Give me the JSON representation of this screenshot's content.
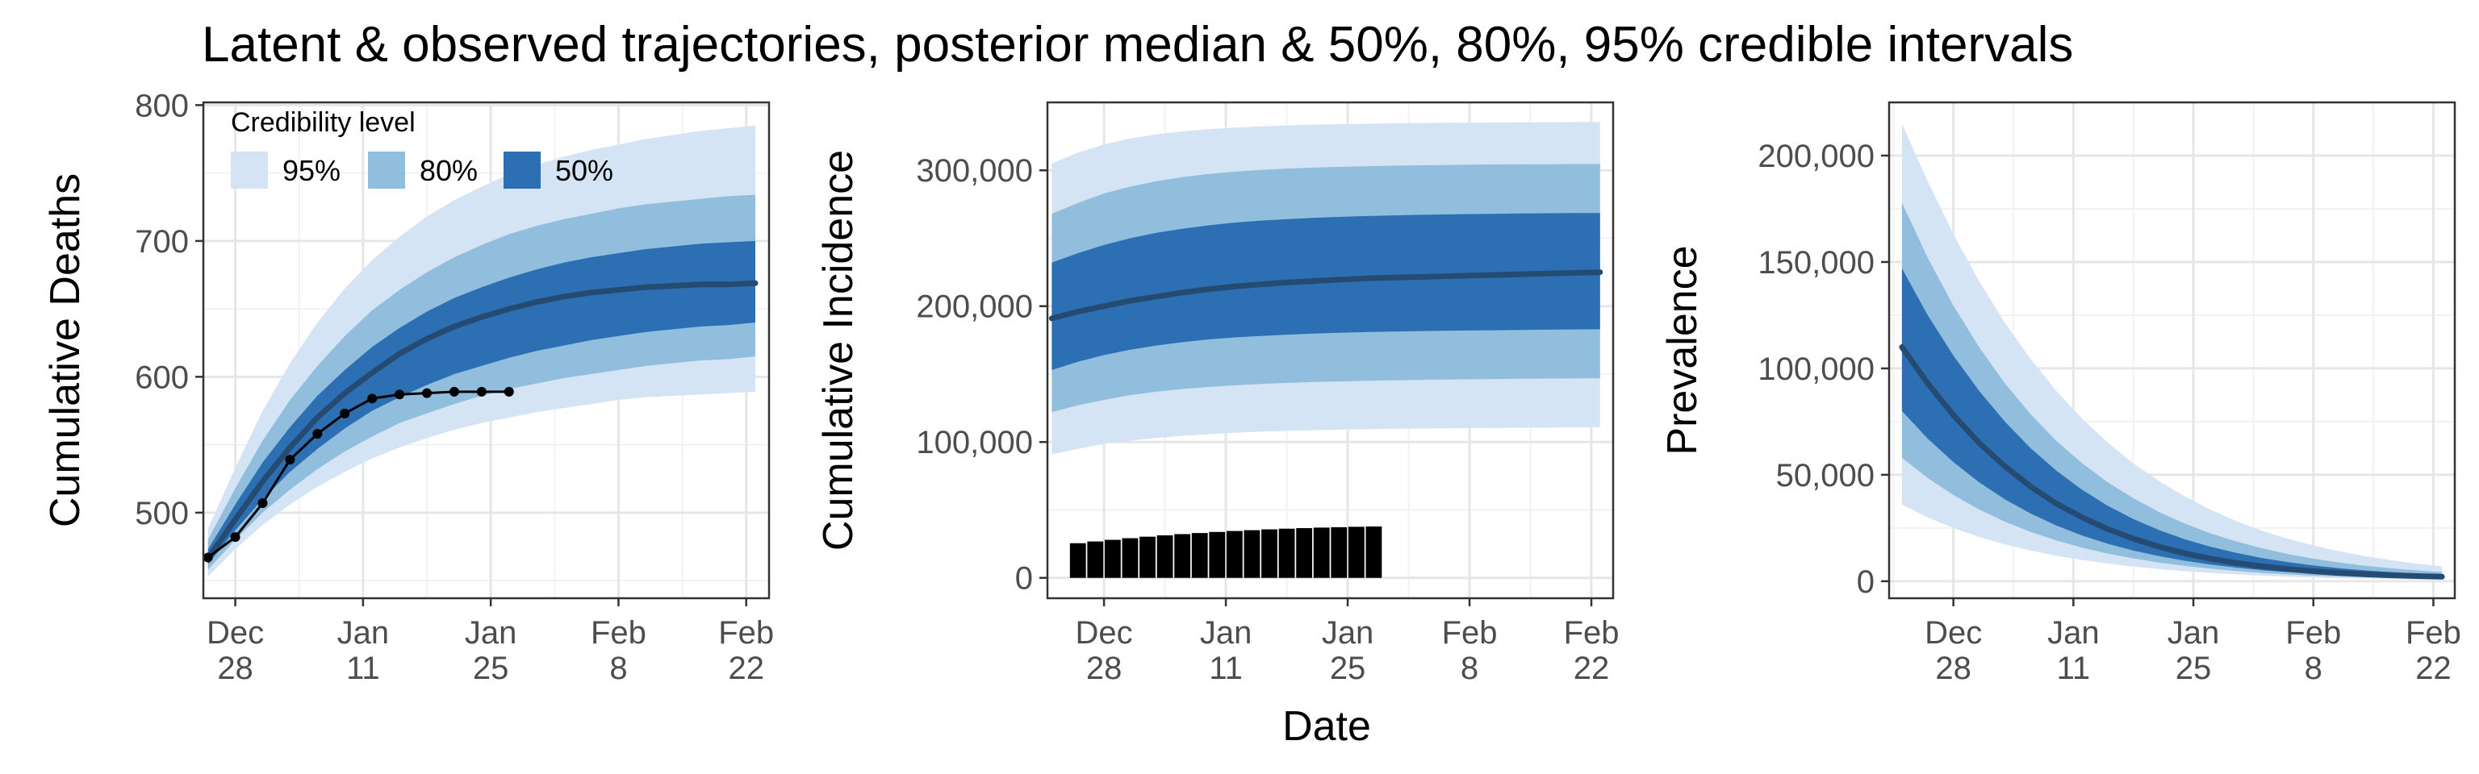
{
  "figure": {
    "title": "Latent & observed trajectories, posterior median & 50%, 80%, 95% credible intervals",
    "xlabel": "Date"
  },
  "colors": {
    "ci95": "#d5e4f4",
    "ci80": "#92bedd",
    "ci50": "#2c6fb2",
    "median": "#264b72",
    "observed": "#000000",
    "grid_major": "#e6e6e6",
    "grid_minor": "#f2f2f2",
    "panel_border": "#333333"
  },
  "legend": {
    "title": "Credibility level",
    "items": [
      {
        "label": "95%",
        "color": "#d5e4f4"
      },
      {
        "label": "80%",
        "color": "#92bedd"
      },
      {
        "label": "50%",
        "color": "#2c6fb2"
      }
    ],
    "placement": "top-left of first panel"
  },
  "chart_data": [
    {
      "type": "area",
      "ylabel": "Cumulative Deaths",
      "xlim": [
        -3.5,
        58.5
      ],
      "ylim": [
        437,
        802
      ],
      "xticks": [
        {
          "v": 0,
          "l1": "Dec",
          "l2": "28"
        },
        {
          "v": 14,
          "l1": "Jan",
          "l2": "11"
        },
        {
          "v": 28,
          "l1": "Jan",
          "l2": "25"
        },
        {
          "v": 42,
          "l1": "Feb",
          "l2": "8"
        },
        {
          "v": 56,
          "l1": "Feb",
          "l2": "22"
        }
      ],
      "yticks": [
        {
          "v": 500,
          "label": "500"
        },
        {
          "v": 600,
          "label": "600"
        },
        {
          "v": 700,
          "label": "700"
        },
        {
          "v": 800,
          "label": "800"
        }
      ],
      "x": [
        -3,
        0,
        3,
        6,
        9,
        12,
        15,
        18,
        21,
        24,
        27,
        30,
        33,
        36,
        39,
        42,
        45,
        48,
        51,
        54,
        57
      ],
      "median": [
        466,
        495,
        523,
        548,
        570,
        588,
        603,
        617,
        628,
        637,
        644,
        650,
        655,
        659,
        662,
        664,
        666,
        667,
        668,
        668,
        669
      ],
      "ci50": {
        "lower": [
          462,
          487,
          510,
          530,
          547,
          562,
          575,
          585,
          594,
          602,
          608,
          614,
          619,
          623,
          627,
          630,
          633,
          635,
          637,
          638,
          640
        ],
        "upper": [
          473,
          506,
          537,
          563,
          586,
          605,
          622,
          636,
          648,
          658,
          666,
          673,
          679,
          684,
          688,
          691,
          694,
          696,
          698,
          699,
          700
        ]
      },
      "ci80": {
        "lower": [
          458,
          480,
          500,
          517,
          532,
          545,
          556,
          566,
          573,
          580,
          586,
          591,
          595,
          599,
          602,
          605,
          608,
          610,
          612,
          613,
          615
        ],
        "upper": [
          480,
          518,
          553,
          583,
          608,
          630,
          649,
          664,
          677,
          688,
          697,
          705,
          711,
          716,
          720,
          724,
          727,
          729,
          731,
          733,
          734
        ]
      },
      "ci95": {
        "lower": [
          453,
          473,
          491,
          506,
          519,
          530,
          540,
          548,
          555,
          561,
          566,
          570,
          574,
          577,
          580,
          583,
          585,
          586,
          587,
          588,
          589
        ],
        "upper": [
          488,
          533,
          575,
          610,
          640,
          665,
          686,
          703,
          718,
          730,
          740,
          749,
          756,
          762,
          767,
          771,
          775,
          778,
          781,
          783,
          785
        ]
      },
      "observed": {
        "x": [
          -3,
          0,
          3,
          6,
          9,
          12,
          15,
          18,
          21,
          24,
          27,
          30
        ],
        "y": [
          467,
          482,
          507,
          539,
          558,
          573,
          584,
          587,
          588,
          589,
          589,
          589
        ]
      }
    },
    {
      "type": "area",
      "ylabel": "Cumulative Incidence",
      "xlim": [
        -6.5,
        58.5
      ],
      "ylim": [
        -15000,
        350000
      ],
      "xticks": [
        {
          "v": 0,
          "l1": "Dec",
          "l2": "28"
        },
        {
          "v": 14,
          "l1": "Jan",
          "l2": "11"
        },
        {
          "v": 28,
          "l1": "Jan",
          "l2": "25"
        },
        {
          "v": 42,
          "l1": "Feb",
          "l2": "8"
        },
        {
          "v": 56,
          "l1": "Feb",
          "l2": "22"
        }
      ],
      "yticks": [
        {
          "v": 0,
          "label": "0"
        },
        {
          "v": 100000,
          "label": "100,000"
        },
        {
          "v": 200000,
          "label": "200,000"
        },
        {
          "v": 300000,
          "label": "300,000"
        }
      ],
      "x": [
        -6,
        -3,
        0,
        3,
        6,
        9,
        12,
        15,
        18,
        21,
        24,
        27,
        30,
        33,
        36,
        39,
        42,
        45,
        48,
        51,
        54,
        57
      ],
      "median": [
        191000,
        196000,
        200000,
        204000,
        207000,
        210000,
        212500,
        214500,
        216000,
        217500,
        218500,
        219500,
        220500,
        221000,
        221500,
        222000,
        222500,
        223000,
        223500,
        224000,
        224500,
        225000
      ],
      "ci50": {
        "lower": [
          153000,
          159000,
          164000,
          168000,
          171000,
          173500,
          175500,
          177000,
          178000,
          179000,
          179800,
          180400,
          180900,
          181300,
          181600,
          181900,
          182100,
          182300,
          182500,
          182700,
          182900,
          183000
        ],
        "upper": [
          232000,
          239000,
          245000,
          250000,
          254000,
          257000,
          259500,
          261500,
          263000,
          264000,
          265000,
          265700,
          266300,
          266800,
          267200,
          267500,
          267800,
          268000,
          268200,
          268400,
          268500,
          268600
        ]
      },
      "ci80": {
        "lower": [
          122000,
          127000,
          131000,
          134500,
          137000,
          139000,
          140500,
          141700,
          142700,
          143500,
          144100,
          144600,
          145000,
          145400,
          145700,
          146000,
          146200,
          146400,
          146600,
          146700,
          146800,
          146900
        ],
        "upper": [
          268000,
          276000,
          283000,
          288000,
          292000,
          295000,
          297300,
          299000,
          300300,
          301300,
          302000,
          302600,
          303000,
          303400,
          303700,
          303900,
          304100,
          304300,
          304400,
          304500,
          304600,
          304700
        ]
      },
      "ci95": {
        "lower": [
          91000,
          95000,
          98500,
          101000,
          103000,
          104600,
          105800,
          106800,
          107600,
          108200,
          108700,
          109100,
          109400,
          109700,
          109900,
          110100,
          110300,
          110400,
          110500,
          110600,
          110700,
          110800
        ],
        "upper": [
          305000,
          313000,
          319000,
          323500,
          326500,
          328700,
          330300,
          331500,
          332400,
          333100,
          333600,
          334000,
          334300,
          334600,
          334800,
          335000,
          335100,
          335200,
          335300,
          335400,
          335500,
          335600
        ]
      },
      "bars": {
        "x": [
          -3,
          -1,
          1,
          3,
          5,
          7,
          9,
          11,
          13,
          15,
          17,
          19,
          21,
          23,
          25,
          27,
          29,
          31
        ],
        "y": [
          25500,
          26800,
          28000,
          29200,
          30300,
          31300,
          32200,
          33000,
          33800,
          34500,
          35100,
          35700,
          36200,
          36600,
          37000,
          37300,
          37600,
          37800
        ]
      }
    },
    {
      "type": "area",
      "ylabel": "Prevalence",
      "xlim": [
        -7.5,
        58.5
      ],
      "ylim": [
        -8000,
        225000
      ],
      "xticks": [
        {
          "v": 0,
          "l1": "Dec",
          "l2": "28"
        },
        {
          "v": 14,
          "l1": "Jan",
          "l2": "11"
        },
        {
          "v": 28,
          "l1": "Jan",
          "l2": "25"
        },
        {
          "v": 42,
          "l1": "Feb",
          "l2": "8"
        },
        {
          "v": 56,
          "l1": "Feb",
          "l2": "22"
        }
      ],
      "yticks": [
        {
          "v": 0,
          "label": "0"
        },
        {
          "v": 50000,
          "label": "50,000"
        },
        {
          "v": 100000,
          "label": "100,000"
        },
        {
          "v": 150000,
          "label": "150,000"
        },
        {
          "v": 200000,
          "label": "200,000"
        }
      ],
      "x": [
        -6,
        -3,
        0,
        3,
        6,
        9,
        12,
        15,
        18,
        21,
        24,
        27,
        30,
        33,
        36,
        39,
        42,
        45,
        48,
        51,
        54,
        57
      ],
      "median": [
        110000,
        93000,
        78000,
        65000,
        54000,
        44500,
        36500,
        30000,
        24500,
        20000,
        16200,
        13100,
        10600,
        8600,
        7000,
        5700,
        4700,
        3900,
        3300,
        2800,
        2400,
        2100
      ],
      "ci50": {
        "lower": [
          80000,
          67000,
          56000,
          46500,
          38500,
          31800,
          26200,
          21500,
          17600,
          14400,
          11800,
          9600,
          7800,
          6400,
          5200,
          4300,
          3600,
          3000,
          2500,
          2100,
          1800,
          1500
        ],
        "upper": [
          147000,
          125000,
          106000,
          89500,
          75000,
          62500,
          52000,
          43000,
          35500,
          29200,
          24000,
          19700,
          16200,
          13300,
          10900,
          9000,
          7400,
          6100,
          5100,
          4300,
          3700,
          3200
        ]
      },
      "ci80": {
        "lower": [
          58000,
          48500,
          40500,
          33700,
          28000,
          23200,
          19200,
          15800,
          13000,
          10700,
          8800,
          7200,
          5900,
          4800,
          3900,
          3200,
          2600,
          2200,
          1800,
          1500,
          1300,
          1100
        ],
        "upper": [
          178000,
          152000,
          129500,
          110000,
          93000,
          78500,
          66000,
          55500,
          46500,
          39000,
          32500,
          27100,
          22500,
          18700,
          15500,
          12800,
          10600,
          8800,
          7300,
          6100,
          5100,
          4300
        ]
      },
      "ci95": {
        "lower": [
          36000,
          30000,
          25000,
          20800,
          17300,
          14400,
          12000,
          10000,
          8300,
          6900,
          5700,
          4700,
          3900,
          3200,
          2600,
          2100,
          1700,
          1400,
          1200,
          1000,
          800,
          700
        ],
        "upper": [
          215000,
          188000,
          163000,
          141000,
          121500,
          104500,
          89500,
          76500,
          65200,
          55400,
          47000,
          39800,
          33600,
          28300,
          23800,
          20000,
          16800,
          14100,
          11800,
          9900,
          8300,
          7000
        ]
      }
    }
  ]
}
